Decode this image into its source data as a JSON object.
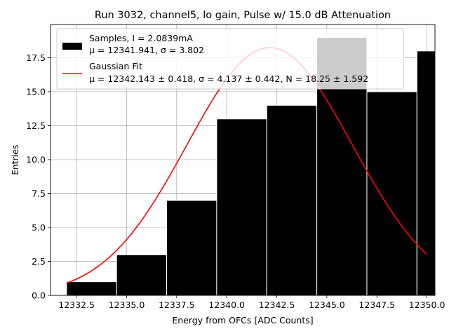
{
  "chart_data": {
    "type": "bar",
    "title": "Run 3032, channel5, lo gain, Pulse w/ 15.0 dB Attenuation",
    "xlabel": "Energy from OFCs [ADC Counts]",
    "ylabel": "Entries",
    "xlim": [
      12331.2,
      12350.4
    ],
    "ylim": [
      0,
      19.95
    ],
    "grid": true,
    "legend_position": "upper-left",
    "colors": {
      "bar": "#000000",
      "bar_edge": "#ffffff",
      "fit": "#ff0000",
      "grid": "#b0b0b0",
      "legend_bg": "#ffffff",
      "legend_border": "#cccccc"
    },
    "xticks": [
      {
        "value": 12332.5,
        "label": "12332.5"
      },
      {
        "value": 12335.0,
        "label": "12335.0"
      },
      {
        "value": 12337.5,
        "label": "12337.5"
      },
      {
        "value": 12340.0,
        "label": "12340.0"
      },
      {
        "value": 12342.5,
        "label": "12342.5"
      },
      {
        "value": 12345.0,
        "label": "12345.0"
      },
      {
        "value": 12347.5,
        "label": "12347.5"
      },
      {
        "value": 12350.0,
        "label": "12350.0"
      }
    ],
    "yticks": [
      {
        "value": 0,
        "label": "0.0"
      },
      {
        "value": 2.5,
        "label": "2.5"
      },
      {
        "value": 5,
        "label": "5.0"
      },
      {
        "value": 7.5,
        "label": "7.5"
      },
      {
        "value": 10,
        "label": "10.0"
      },
      {
        "value": 12.5,
        "label": "12.5"
      },
      {
        "value": 15,
        "label": "15.0"
      },
      {
        "value": 17.5,
        "label": "17.5"
      }
    ],
    "bins": [
      {
        "x0": 12332.0,
        "x1": 12334.5,
        "value": 1
      },
      {
        "x0": 12334.5,
        "x1": 12337.0,
        "value": 3
      },
      {
        "x0": 12337.0,
        "x1": 12339.5,
        "value": 7
      },
      {
        "x0": 12339.5,
        "x1": 12342.0,
        "value": 13
      },
      {
        "x0": 12342.0,
        "x1": 12344.5,
        "value": 14
      },
      {
        "x0": 12344.5,
        "x1": 12347.0,
        "value": 19
      },
      {
        "x0": 12347.0,
        "x1": 12349.5,
        "value": 15
      },
      {
        "x0": 12349.5,
        "x1": 12352.0,
        "value": 18
      }
    ],
    "series": [
      {
        "name": "Samples",
        "kind": "histogram",
        "bins": [
          {
            "x0": 12332.0,
            "x1": 12334.5,
            "value": 1
          },
          {
            "x0": 12334.5,
            "x1": 12337.0,
            "value": 3
          },
          {
            "x0": 12337.0,
            "x1": 12339.5,
            "value": 7
          },
          {
            "x0": 12339.5,
            "x1": 12342.0,
            "value": 13
          },
          {
            "x0": 12342.0,
            "x1": 12344.5,
            "value": 14
          },
          {
            "x0": 12344.5,
            "x1": 12347.0,
            "value": 19
          },
          {
            "x0": 12347.0,
            "x1": 12349.5,
            "value": 15
          },
          {
            "x0": 12349.5,
            "x1": 12352.0,
            "value": 18
          }
        ]
      },
      {
        "name": "Gaussian Fit",
        "kind": "fit",
        "mu": 12342.143,
        "sigma": 4.137,
        "N": 18.25,
        "x_start": 12332.0,
        "x_end": 12350.0
      }
    ],
    "legend": [
      {
        "line1": "Samples, I = 2.0839mA",
        "line2": "μ = 12341.941, σ = 3.802"
      },
      {
        "line1": "Gaussian Fit",
        "line2": "μ = 12342.143 ± 0.418, σ = 4.137 ± 0.442, N = 18.25 ± 1.592"
      }
    ]
  }
}
